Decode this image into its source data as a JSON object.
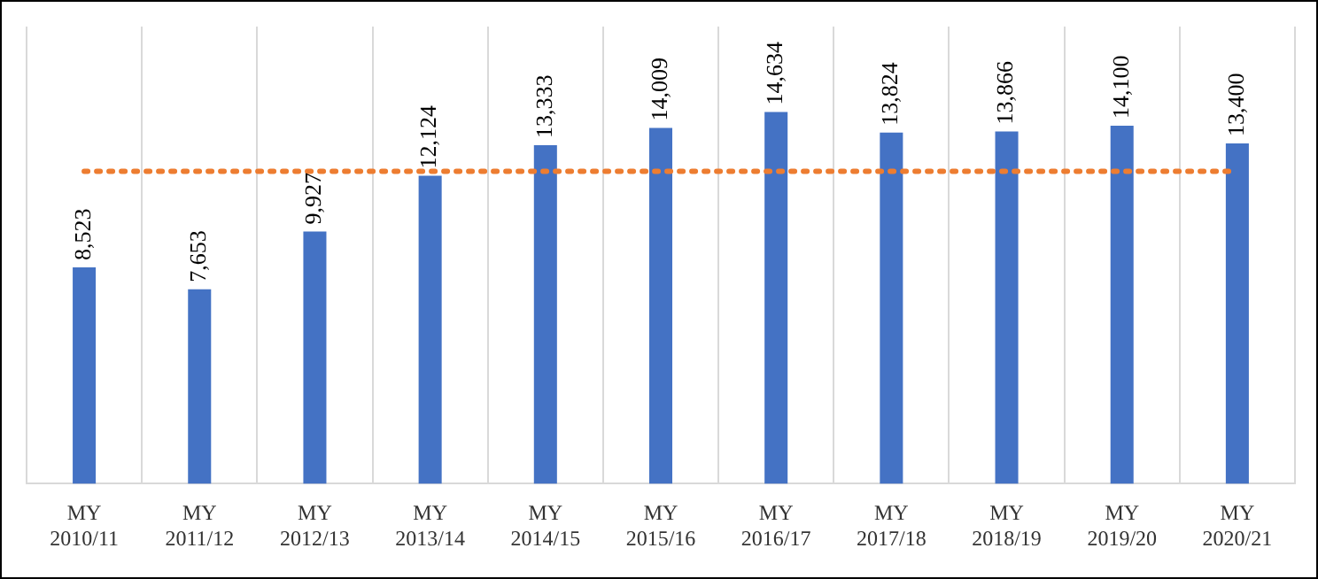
{
  "chart_data": {
    "type": "bar",
    "categories": [
      "MY 2010/11",
      "MY 2011/12",
      "MY 2012/13",
      "MY 2013/14",
      "MY 2014/15",
      "MY 2015/16",
      "MY 2016/17",
      "MY 2017/18",
      "MY 2018/19",
      "MY 2019/20",
      "MY 2020/21"
    ],
    "values": [
      8523,
      7653,
      9927,
      12124,
      13333,
      14009,
      14634,
      13824,
      13866,
      14100,
      13400
    ],
    "color": "#4472c4",
    "value_labels": [
      "8,523",
      "7,653",
      "9,927",
      "12,124",
      "13,333",
      "14,009",
      "14,634",
      "13,824",
      "13,866",
      "14,100",
      "13,400"
    ],
    "tick_labels": "x",
    "grid": "x",
    "legend": false,
    "ref_lines": [
      {
        "axis": "y",
        "value": 12300,
        "color": "#ed7d31",
        "line_style": "dotted"
      }
    ]
  }
}
